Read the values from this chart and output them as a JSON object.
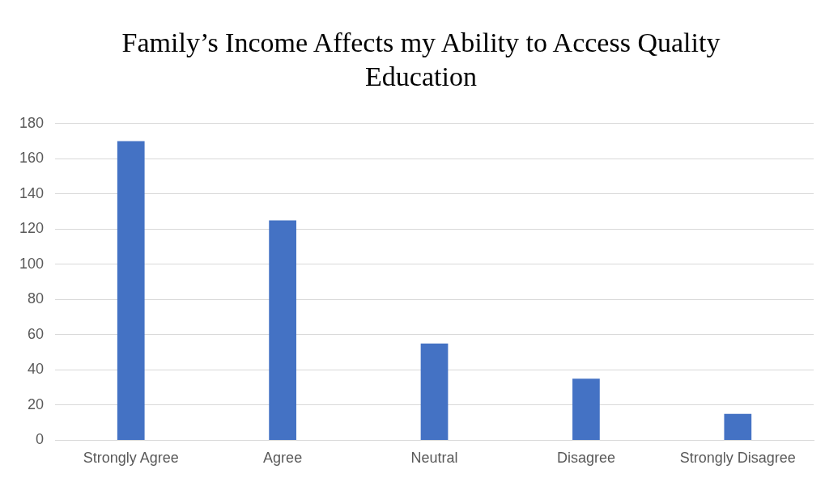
{
  "chart_data": {
    "type": "bar",
    "title": "Family’s Income Affects my Ability to Access Quality Education",
    "categories": [
      "Strongly Agree",
      "Agree",
      "Neutral",
      "Disagree",
      "Strongly Disagree"
    ],
    "values": [
      170,
      125,
      55,
      35,
      15
    ],
    "color": "#4472c4",
    "ylim": [
      0,
      180
    ],
    "yticks": [
      0,
      20,
      40,
      60,
      80,
      100,
      120,
      140,
      160,
      180
    ],
    "grid": "y",
    "legend": false
  }
}
